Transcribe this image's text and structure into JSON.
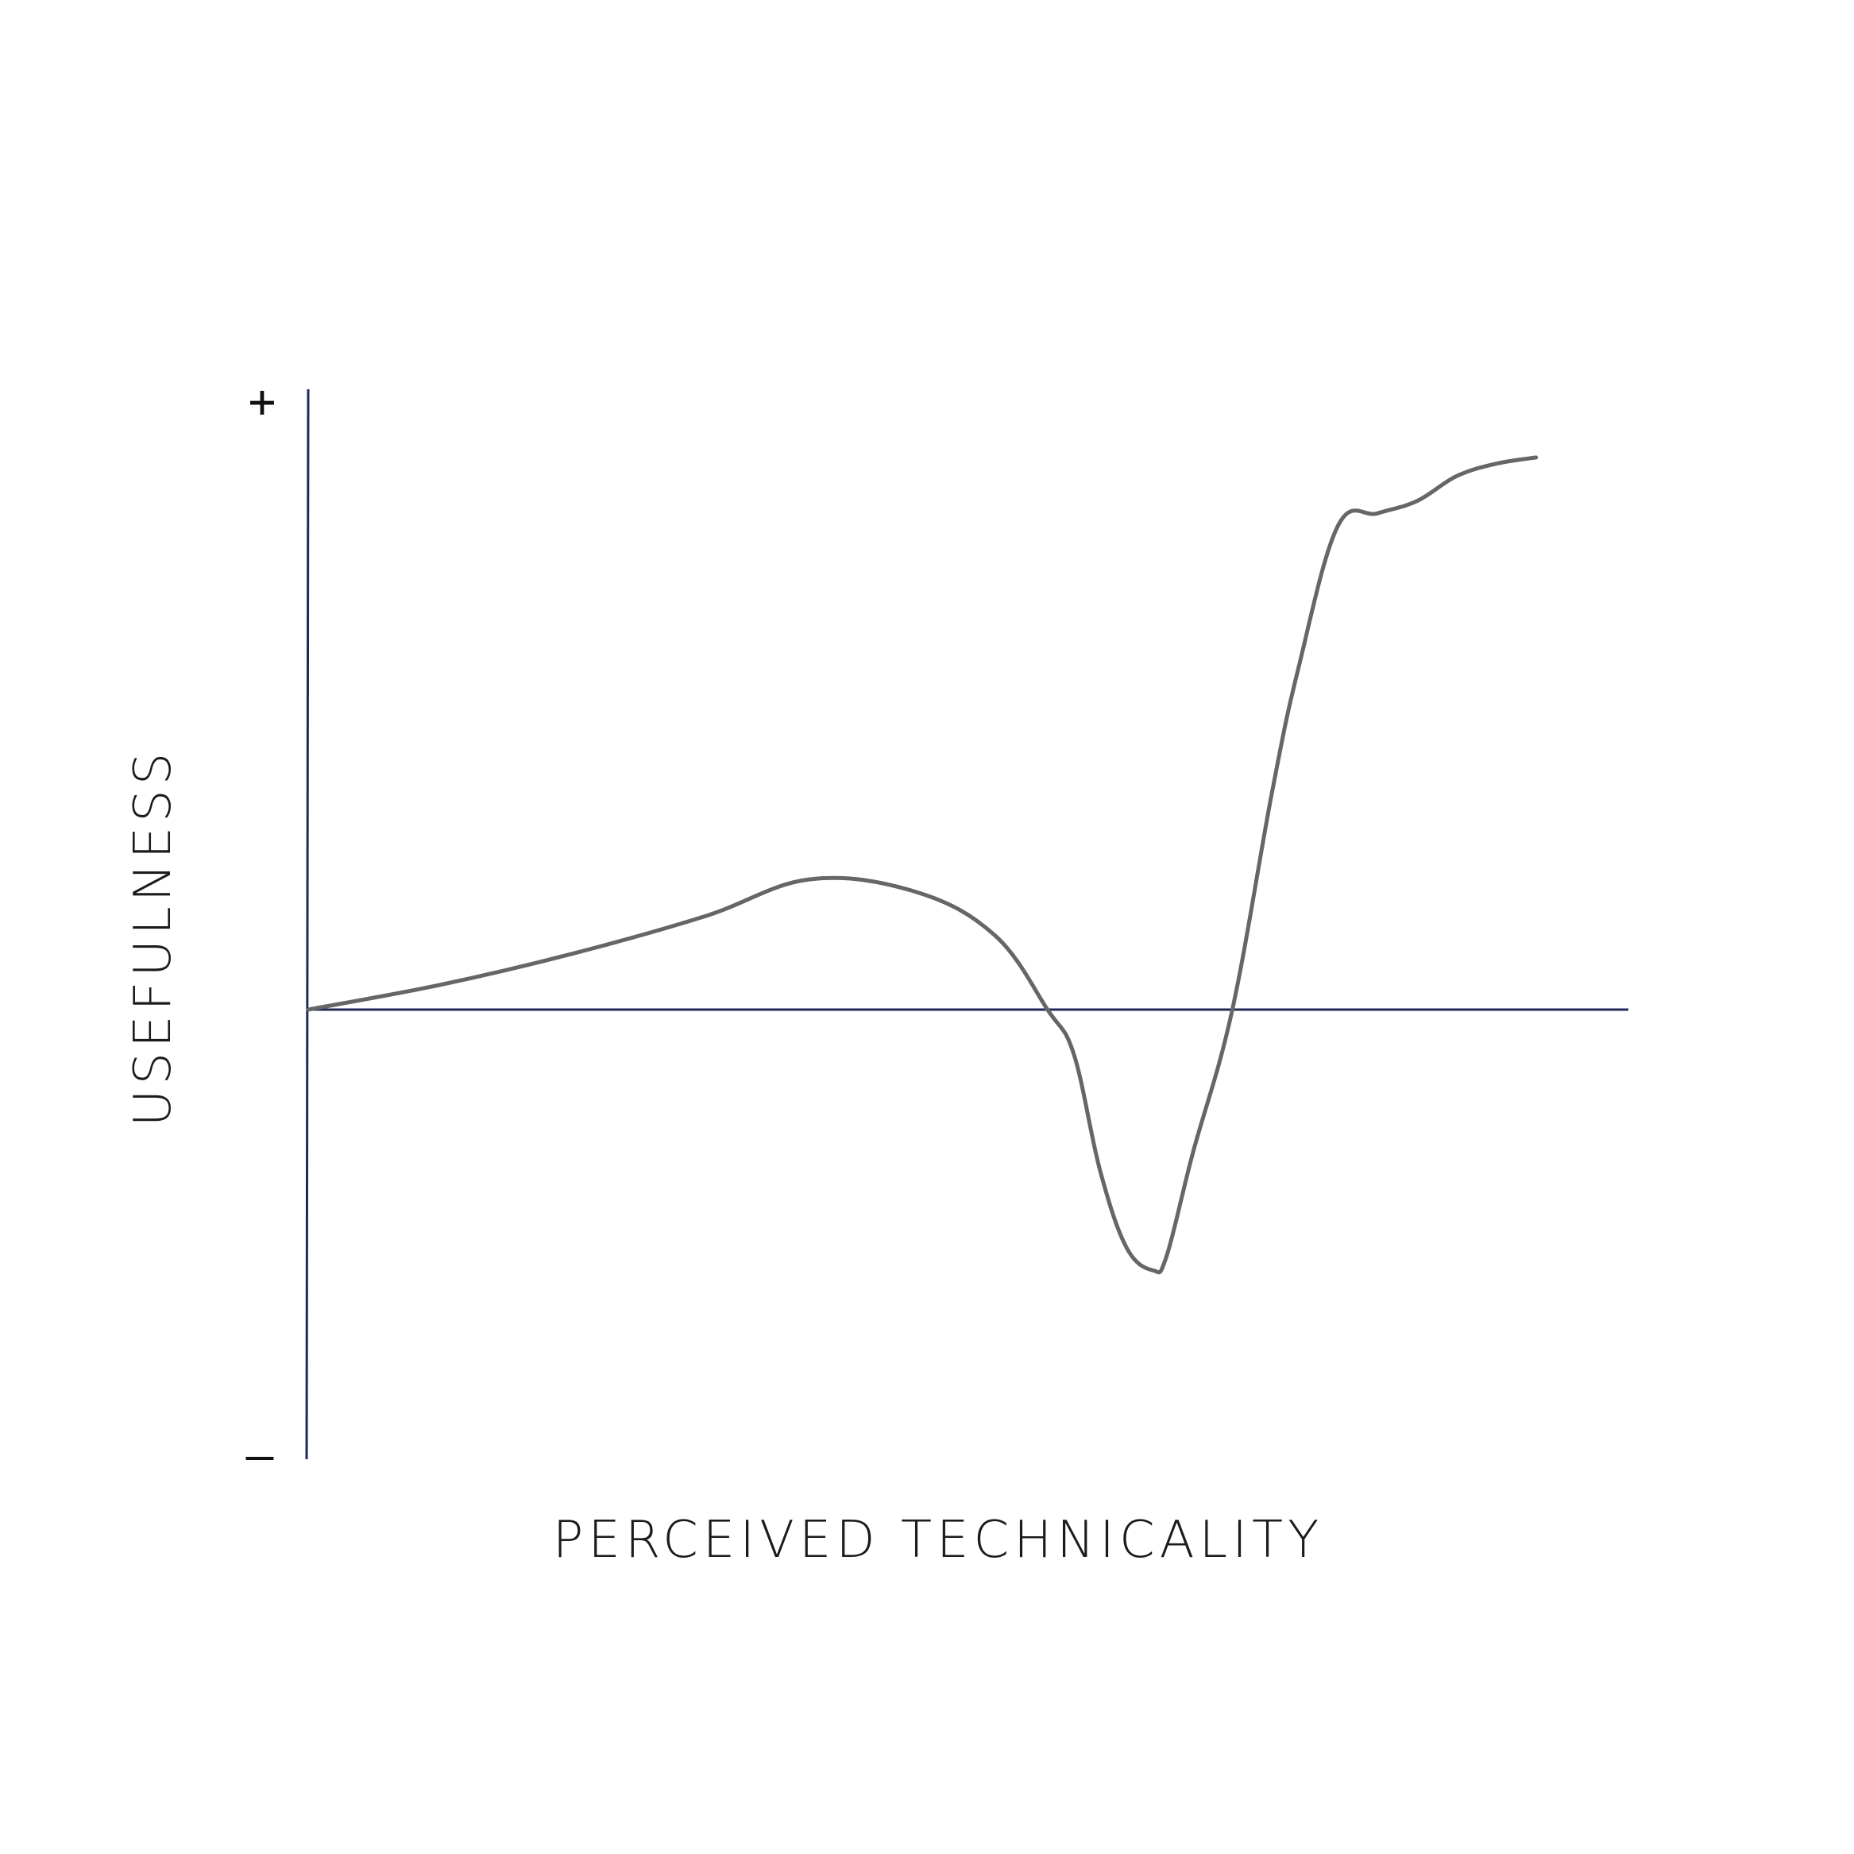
{
  "chart_data": {
    "type": "line",
    "title": "",
    "xlabel": "PERCEIVED TECHNICALITY",
    "ylabel": "USEFULNESS",
    "y_axis_markers": {
      "top": "+",
      "bottom": "–"
    },
    "ylim": [
      -1,
      1
    ],
    "xlim": [
      0,
      1
    ],
    "grid": false,
    "legend": "none",
    "colors": {
      "axis": "#1f2a55",
      "curve": "#666666"
    },
    "series": [
      {
        "x": [
          0,
          0.1,
          0.2,
          0.3,
          0.38,
          0.46,
          0.52,
          0.56,
          0.58,
          0.6,
          0.62,
          0.64,
          0.65,
          0.67,
          0.7,
          0.73,
          0.75,
          0.78,
          0.81,
          0.84,
          0.87,
          0.9,
          0.93
        ],
        "y": [
          0,
          0.04,
          0.09,
          0.15,
          0.21,
          0.19,
          0.12,
          0.0,
          -0.1,
          -0.36,
          -0.53,
          -0.58,
          -0.55,
          -0.32,
          0.0,
          0.35,
          0.55,
          0.78,
          0.8,
          0.82,
          0.86,
          0.88,
          0.89
        ]
      }
    ]
  }
}
